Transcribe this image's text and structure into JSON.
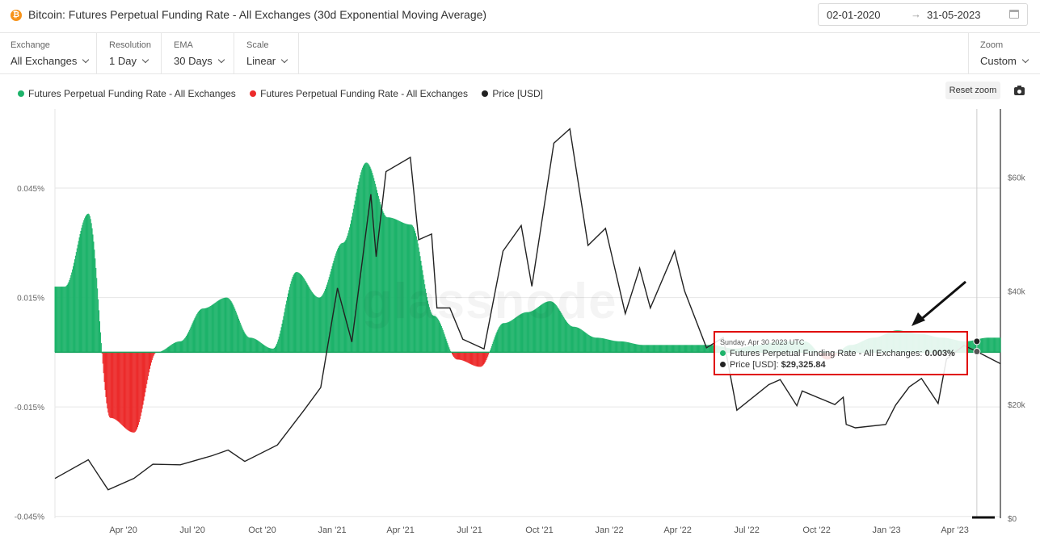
{
  "header": {
    "coin_symbol": "₿",
    "title": "Bitcoin: Futures Perpetual Funding Rate - All Exchanges (30d Exponential Moving Average)",
    "date_from": "02-01-2020",
    "date_to": "31-05-2023",
    "date_arrow": "→"
  },
  "controls": {
    "exchange": {
      "label": "Exchange",
      "value": "All Exchanges"
    },
    "resolution": {
      "label": "Resolution",
      "value": "1 Day"
    },
    "ema": {
      "label": "EMA",
      "value": "30 Days"
    },
    "scale": {
      "label": "Scale",
      "value": "Linear"
    },
    "zoom": {
      "label": "Zoom",
      "value": "Custom"
    }
  },
  "toolbar": {
    "reset_zoom": "Reset zoom"
  },
  "watermark": "glassnode",
  "tooltip": {
    "date": "Sunday, Apr 30 2023 UTC",
    "series1_label": "Futures Perpetual Funding Rate - All Exchanges:",
    "series1_value": "0.003%",
    "series2_label": "Price [USD]:",
    "series2_value": "$29,325.84"
  },
  "colors": {
    "positive": "#1db36a",
    "negative": "#ec2b2b",
    "price": "#222222",
    "highlight": "#e00000"
  },
  "chart_data": {
    "type": "bar",
    "title": "Bitcoin: Futures Perpetual Funding Rate - All Exchanges (30d Exponential Moving Average)",
    "legend": [
      {
        "name": "Futures Perpetual Funding Rate - All Exchanges",
        "color": "#1db36a"
      },
      {
        "name": "Futures Perpetual Funding Rate - All Exchanges",
        "color": "#ec2b2b"
      },
      {
        "name": "Price [USD]",
        "color": "#222222"
      }
    ],
    "x_start": "2020-01-02",
    "x_end": "2023-05-31",
    "x_ticks": [
      "Apr '20",
      "Jul '20",
      "Oct '20",
      "Jan '21",
      "Apr '21",
      "Jul '21",
      "Oct '21",
      "Jan '22",
      "Apr '22",
      "Jul '22",
      "Oct '22",
      "Jan '23",
      "Apr '23"
    ],
    "x_tick_months": [
      3,
      6,
      9,
      12,
      15,
      18,
      21,
      24,
      27,
      30,
      33,
      36,
      39
    ],
    "y_left": {
      "ticks": [
        0.045,
        0.015,
        -0.015,
        -0.045
      ],
      "tick_labels": [
        "0.045%",
        "0.015%",
        "-0.015%",
        "-0.045%"
      ],
      "range": [
        -0.0455,
        0.0667
      ],
      "unit": "%"
    },
    "y_right": {
      "ticks": [
        0,
        20000,
        40000,
        60000
      ],
      "tick_labels": [
        "$0",
        "$20k",
        "$40k",
        "$60k"
      ],
      "range": [
        0,
        72000
      ],
      "unit": "USD"
    },
    "funding_rate_monthly_avg": {
      "name": "Futures Perpetual Funding Rate - All Exchanges",
      "months": [
        "2020-01",
        "2020-02",
        "2020-03",
        "2020-04",
        "2020-05",
        "2020-06",
        "2020-07",
        "2020-08",
        "2020-09",
        "2020-10",
        "2020-11",
        "2020-12",
        "2021-01",
        "2021-02",
        "2021-03",
        "2021-04",
        "2021-05",
        "2021-06",
        "2021-07",
        "2021-08",
        "2021-09",
        "2021-10",
        "2021-11",
        "2021-12",
        "2022-01",
        "2022-02",
        "2022-03",
        "2022-04",
        "2022-05",
        "2022-06",
        "2022-07",
        "2022-08",
        "2022-09",
        "2022-10",
        "2022-11",
        "2022-12",
        "2023-01",
        "2023-02",
        "2023-03",
        "2023-04",
        "2023-05"
      ],
      "values": [
        0.018,
        0.038,
        -0.018,
        -0.022,
        0.0,
        0.003,
        0.012,
        0.015,
        0.004,
        0.001,
        0.022,
        0.015,
        0.03,
        0.052,
        0.037,
        0.035,
        0.01,
        -0.002,
        -0.004,
        0.008,
        0.011,
        0.014,
        0.007,
        0.004,
        0.003,
        0.002,
        0.002,
        0.002,
        0.002,
        0.001,
        0.002,
        0.003,
        0.003,
        -0.002,
        0.002,
        0.004,
        0.006,
        0.005,
        0.004,
        0.003,
        0.004
      ]
    },
    "price_usd": {
      "name": "Price [USD]",
      "dates": [
        "2020-01-02",
        "2020-02-15",
        "2020-03-12",
        "2020-04-15",
        "2020-05-10",
        "2020-06-15",
        "2020-07-27",
        "2020-08-17",
        "2020-09-08",
        "2020-10-21",
        "2020-11-25",
        "2020-12-17",
        "2021-01-08",
        "2021-01-27",
        "2021-02-21",
        "2021-02-28",
        "2021-03-13",
        "2021-04-14",
        "2021-04-25",
        "2021-05-12",
        "2021-05-19",
        "2021-06-05",
        "2021-06-22",
        "2021-07-20",
        "2021-08-14",
        "2021-09-07",
        "2021-09-21",
        "2021-10-20",
        "2021-11-10",
        "2021-12-04",
        "2021-12-27",
        "2022-01-22",
        "2022-02-10",
        "2022-02-24",
        "2022-03-28",
        "2022-04-10",
        "2022-05-09",
        "2022-05-31",
        "2022-06-18",
        "2022-07-30",
        "2022-08-14",
        "2022-09-05",
        "2022-09-12",
        "2022-10-25",
        "2022-11-05",
        "2022-11-09",
        "2022-11-21",
        "2022-12-31",
        "2023-01-13",
        "2023-01-31",
        "2023-02-16",
        "2023-03-10",
        "2023-03-21",
        "2023-04-13",
        "2023-04-30",
        "2023-05-31"
      ],
      "values": [
        7000,
        10300,
        5000,
        7000,
        9500,
        9400,
        11000,
        12000,
        10000,
        12900,
        19000,
        23000,
        40500,
        31000,
        57000,
        46000,
        61000,
        63500,
        49000,
        50000,
        37000,
        37000,
        31500,
        29800,
        47000,
        51500,
        40800,
        66000,
        68500,
        48000,
        51000,
        36000,
        44000,
        37000,
        47000,
        40000,
        30000,
        31800,
        19000,
        23500,
        24400,
        19800,
        22400,
        20000,
        21300,
        16500,
        15900,
        16500,
        19900,
        23100,
        24600,
        20200,
        28000,
        30400,
        29325.84,
        27200
      ]
    },
    "highlight": {
      "date": "2023-04-30",
      "funding_rate": 0.003,
      "price": 29325.84
    }
  }
}
